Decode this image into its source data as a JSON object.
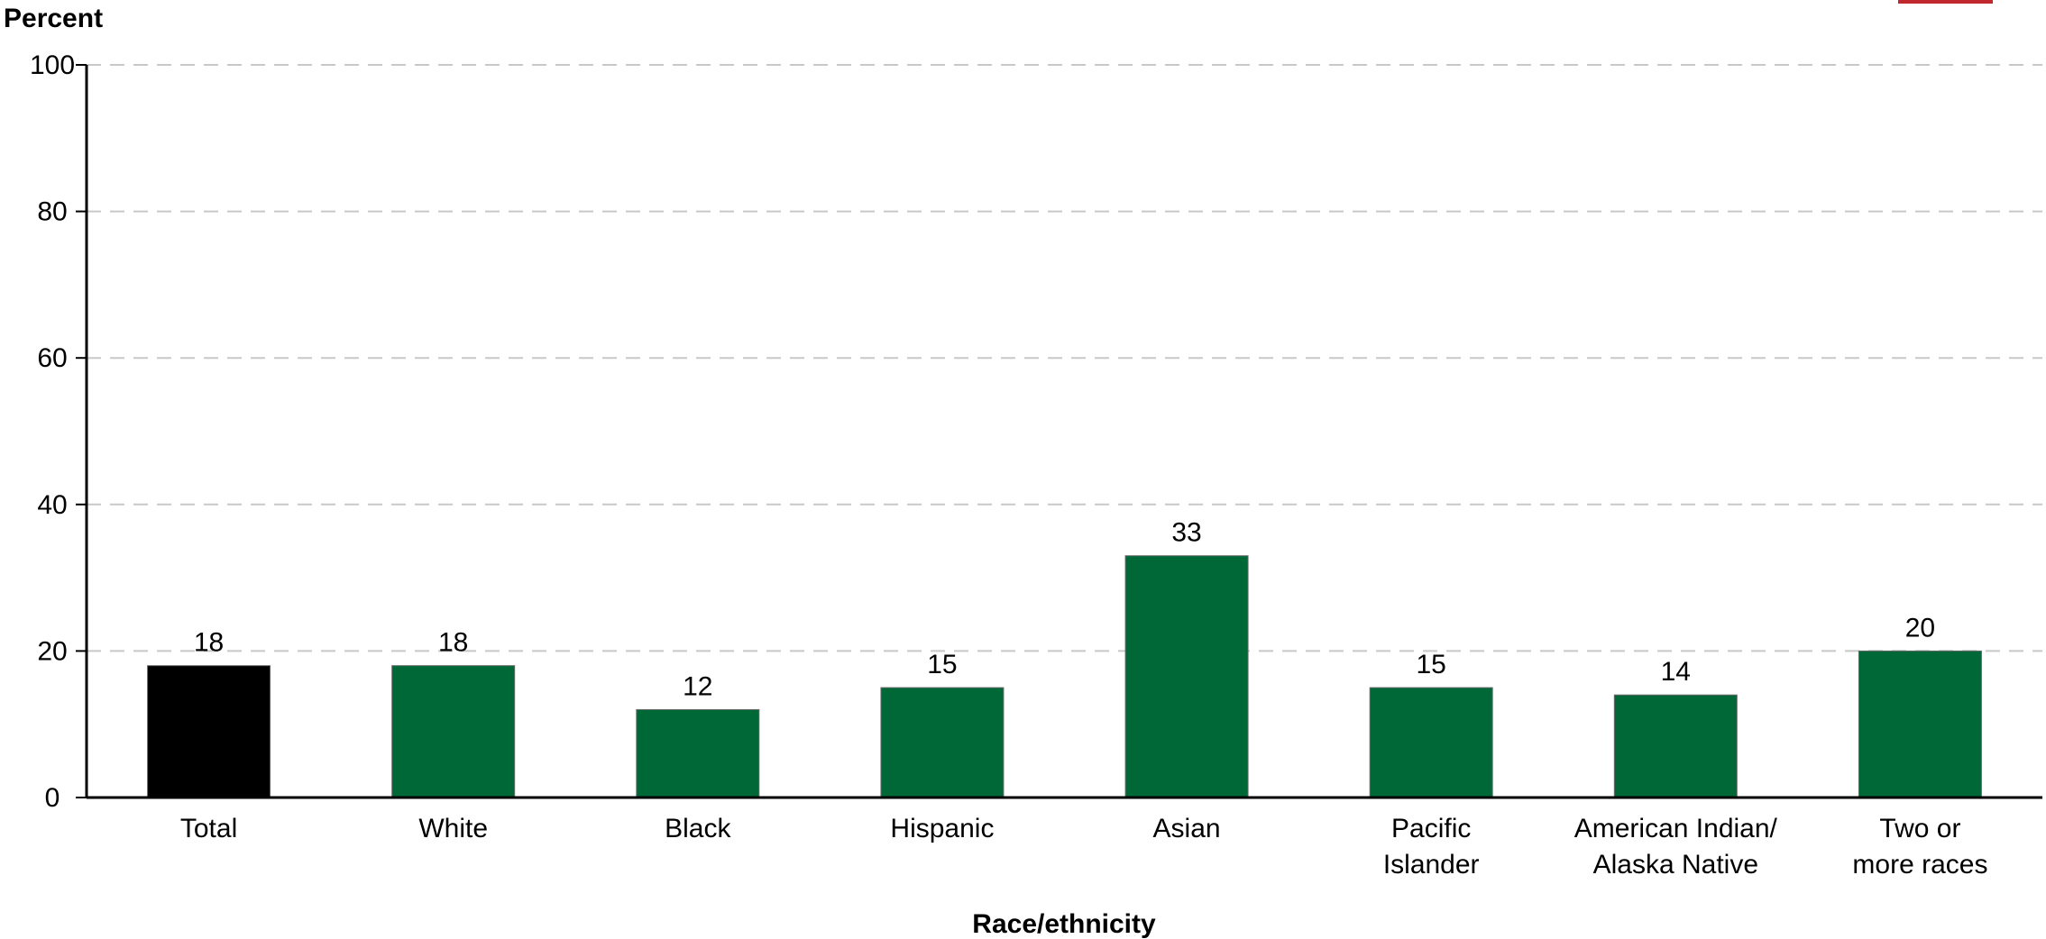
{
  "chart_data": {
    "type": "bar",
    "categories": [
      [
        "Total"
      ],
      [
        "White"
      ],
      [
        "Black"
      ],
      [
        "Hispanic"
      ],
      [
        "Asian"
      ],
      [
        "Pacific",
        "Islander"
      ],
      [
        "American Indian/",
        "Alaska Native"
      ],
      [
        "Two or",
        "more races"
      ]
    ],
    "values": [
      18,
      18,
      12,
      15,
      33,
      15,
      14,
      20
    ],
    "value_labels": [
      "18",
      "18",
      "12",
      "15",
      "33",
      "15",
      "14",
      "20"
    ],
    "xlabel": "Race/ethnicity",
    "ylabel": "Percent",
    "ylim": [
      0,
      100
    ],
    "yticks": [
      0,
      20,
      40,
      60,
      80,
      100
    ],
    "grid": true,
    "colors": {
      "highlight": "#000000",
      "bar": "#006837",
      "grid": "#c8c8c8",
      "axis": "#000000",
      "accent": "#c0282d"
    },
    "highlight_index": 0
  }
}
